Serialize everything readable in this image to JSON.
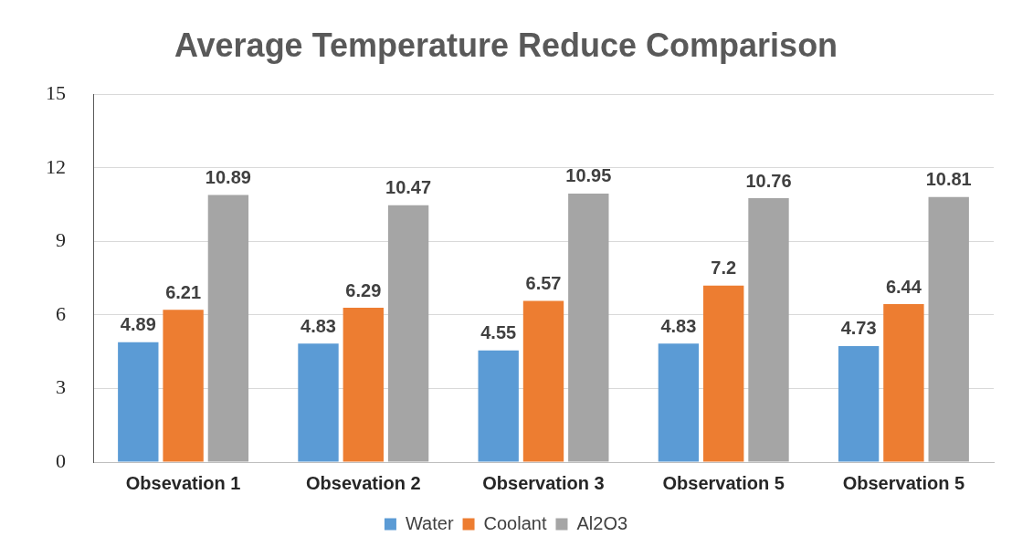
{
  "chart_data": {
    "type": "bar",
    "title": "Average Temperature Reduce Comparison",
    "categories": [
      "Obsevation 1",
      "Obsevation 2",
      "Observation 3",
      "Observation 5",
      "Observation 5"
    ],
    "series": [
      {
        "name": "Water",
        "color": "#5b9bd5",
        "values": [
          4.89,
          4.83,
          4.55,
          4.83,
          4.73
        ]
      },
      {
        "name": "Coolant",
        "color": "#ed7d31",
        "values": [
          6.21,
          6.29,
          6.57,
          7.2,
          6.44
        ]
      },
      {
        "name": "Al2O3",
        "color": "#a5a5a5",
        "values": [
          10.89,
          10.47,
          10.95,
          10.76,
          10.81
        ]
      }
    ],
    "ylim": [
      0,
      15
    ],
    "yticks": [
      0,
      3,
      6,
      9,
      12,
      15
    ],
    "grid": "y",
    "legend": "bottom",
    "data_labels": true
  }
}
